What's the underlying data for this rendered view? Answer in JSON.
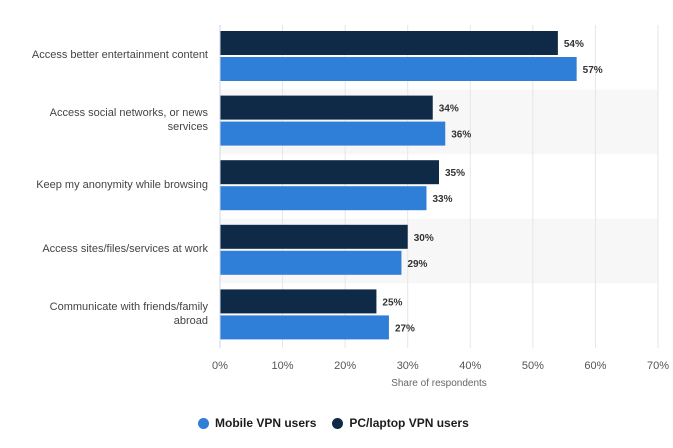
{
  "chart_data": {
    "type": "bar",
    "orientation": "horizontal",
    "categories": [
      "Access better entertainment content",
      "Access social networks, or news services",
      "Keep my anonymity while browsing",
      "Access sites/files/services at work",
      "Communicate with friends/family abroad"
    ],
    "category_lines": [
      [
        "Access better entertainment content"
      ],
      [
        "Access social networks, or news",
        "services"
      ],
      [
        "Keep my anonymity while browsing"
      ],
      [
        "Access sites/files/services at work"
      ],
      [
        "Communicate with friends/family",
        "abroad"
      ]
    ],
    "series": [
      {
        "name": "PC/laptop VPN users",
        "color": "#0f2a46",
        "values": [
          54,
          34,
          35,
          30,
          25
        ]
      },
      {
        "name": "Mobile VPN users",
        "color": "#2f7ed8",
        "values": [
          57,
          36,
          33,
          29,
          27
        ]
      }
    ],
    "xlabel": "Share of respondents",
    "xlim": [
      0,
      70
    ],
    "xticks": [
      "0%",
      "10%",
      "20%",
      "30%",
      "40%",
      "50%",
      "60%",
      "70%"
    ],
    "value_suffix": "%",
    "gridlines": true,
    "alternating_band_color": "#f7f7f7",
    "legend": {
      "position": "bottom",
      "items": [
        {
          "label": "Mobile VPN users",
          "color": "#2f7ed8"
        },
        {
          "label": "PC/laptop VPN users",
          "color": "#0f2a46"
        }
      ]
    }
  }
}
